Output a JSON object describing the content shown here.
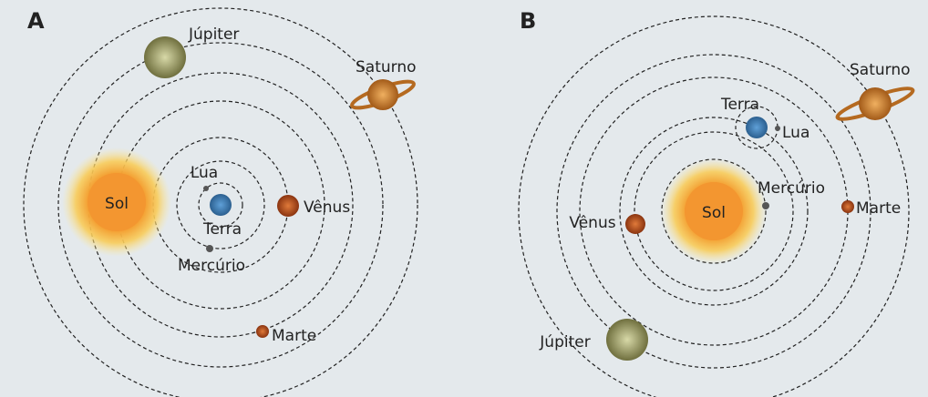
{
  "panels": [
    {
      "label": "A",
      "bodies": {
        "sun": "Sol",
        "moon": "Lua",
        "earth": "Terra",
        "mercury": "Mercúrio",
        "venus": "Vênus",
        "mars": "Marte",
        "jupiter": "Júpiter",
        "saturn": "Saturno"
      }
    },
    {
      "label": "B",
      "bodies": {
        "sun": "Sol",
        "moon": "Lua",
        "earth": "Terra",
        "mercury": "Mercúrio",
        "venus": "Vênus",
        "mars": "Marte",
        "jupiter": "Júpiter",
        "saturn": "Saturno"
      }
    }
  ]
}
